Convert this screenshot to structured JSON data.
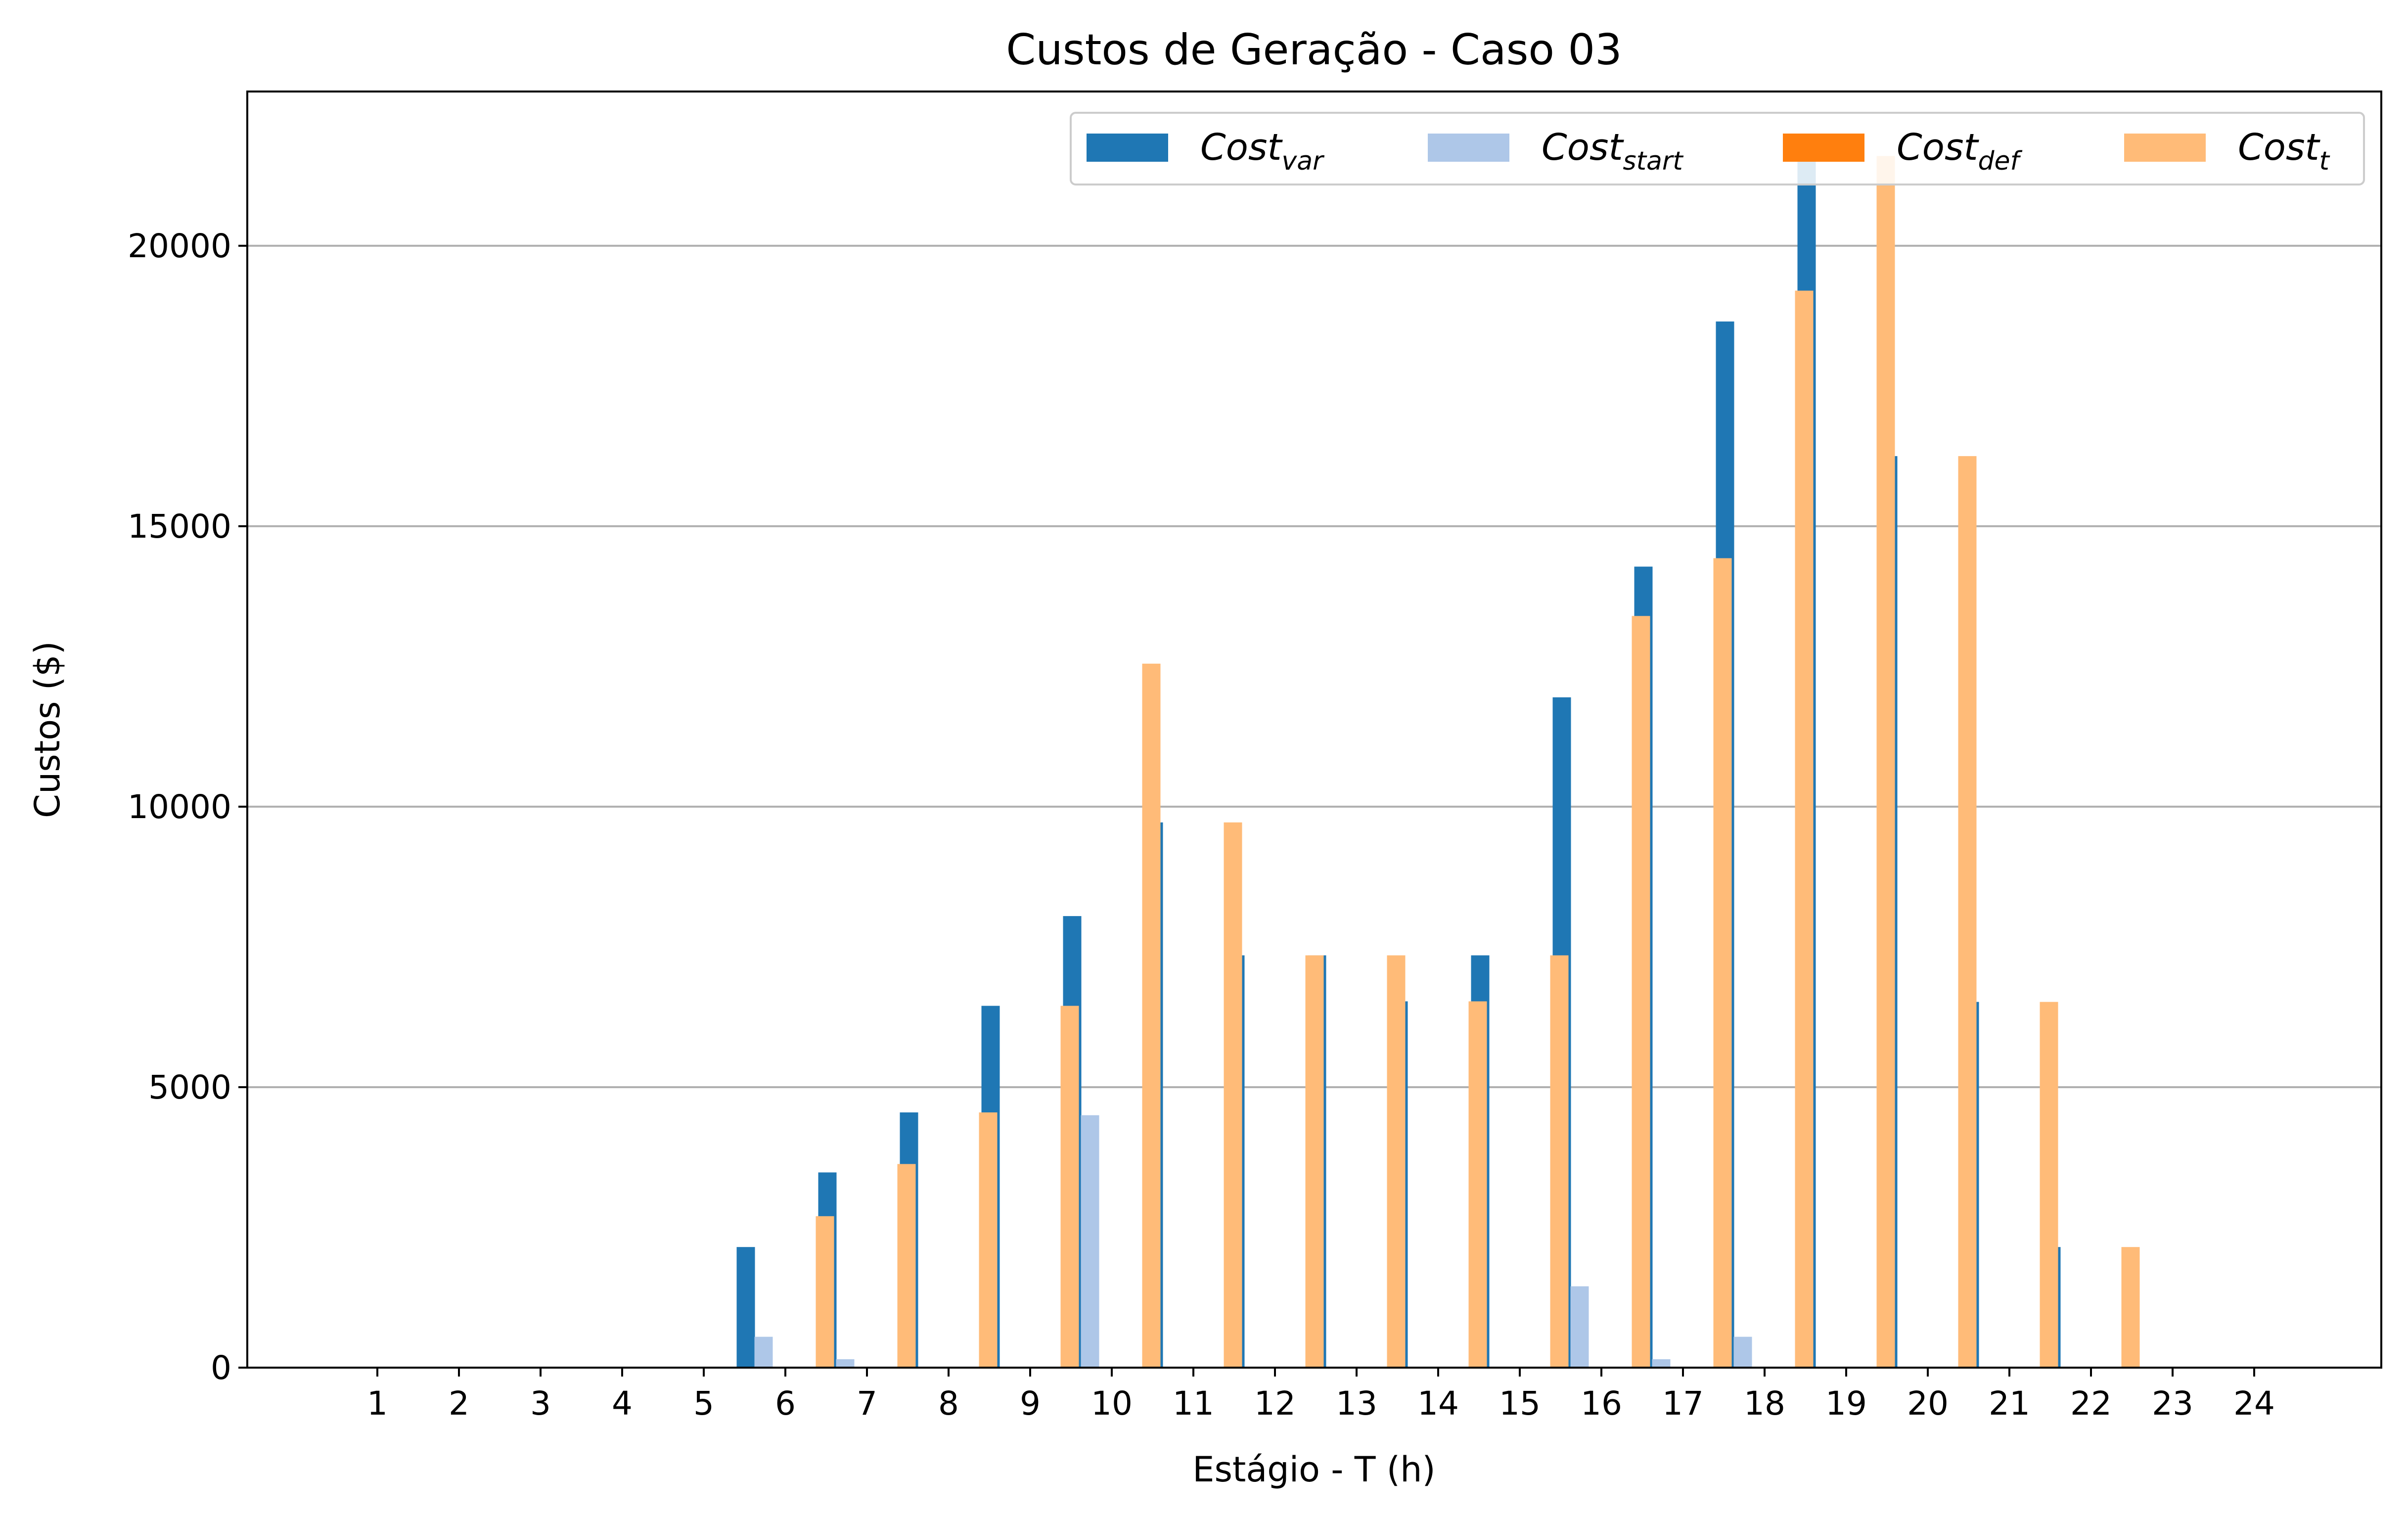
{
  "chart_data": {
    "type": "bar",
    "title": "Custos de Geração - Caso 03",
    "xlabel": "Estágio - T (h)",
    "ylabel": "Custos ($)",
    "ylim": [
      0,
      22750
    ],
    "yticks": [
      0,
      5000,
      10000,
      15000,
      20000
    ],
    "grid": "y",
    "legend_position": "top-right",
    "categories": [
      "1",
      "2",
      "3",
      "4",
      "5",
      "6",
      "7",
      "8",
      "9",
      "10",
      "11",
      "12",
      "13",
      "14",
      "15",
      "16",
      "17",
      "18",
      "19",
      "20",
      "21",
      "22",
      "23",
      "24"
    ],
    "series": [
      {
        "name": "Cost_var",
        "legend_main": "Cost",
        "legend_sub": "var",
        "color": "#1f77b4",
        "values": [
          0,
          0,
          0,
          0,
          0,
          2150,
          3480,
          4550,
          6450,
          8050,
          9720,
          7350,
          7350,
          6530,
          7350,
          11950,
          14280,
          18650,
          21600,
          16250,
          6520,
          2150,
          0,
          0
        ]
      },
      {
        "name": "Cost_start",
        "legend_main": "Cost",
        "legend_sub": "start",
        "color": "#aec7e8",
        "values": [
          0,
          0,
          0,
          0,
          0,
          550,
          150,
          0,
          0,
          4500,
          0,
          0,
          0,
          0,
          0,
          1450,
          150,
          550,
          0,
          0,
          0,
          0,
          0,
          0
        ]
      },
      {
        "name": "Cost_def",
        "legend_main": "Cost",
        "legend_sub": "def",
        "color": "#ff7f0e",
        "values": [
          0,
          0,
          0,
          0,
          0,
          0,
          0,
          0,
          0,
          0,
          0,
          0,
          0,
          0,
          0,
          0,
          0,
          0,
          0,
          0,
          0,
          0,
          0,
          0
        ]
      },
      {
        "name": "Cost_t",
        "legend_main": "Cost",
        "legend_sub": "t",
        "color": "#ffbb78",
        "values": [
          0,
          0,
          0,
          0,
          0,
          2700,
          3630,
          4550,
          6450,
          12550,
          9720,
          7350,
          7350,
          6530,
          7350,
          13400,
          14430,
          19200,
          21600,
          16250,
          6520,
          2150,
          0,
          0
        ]
      }
    ]
  }
}
